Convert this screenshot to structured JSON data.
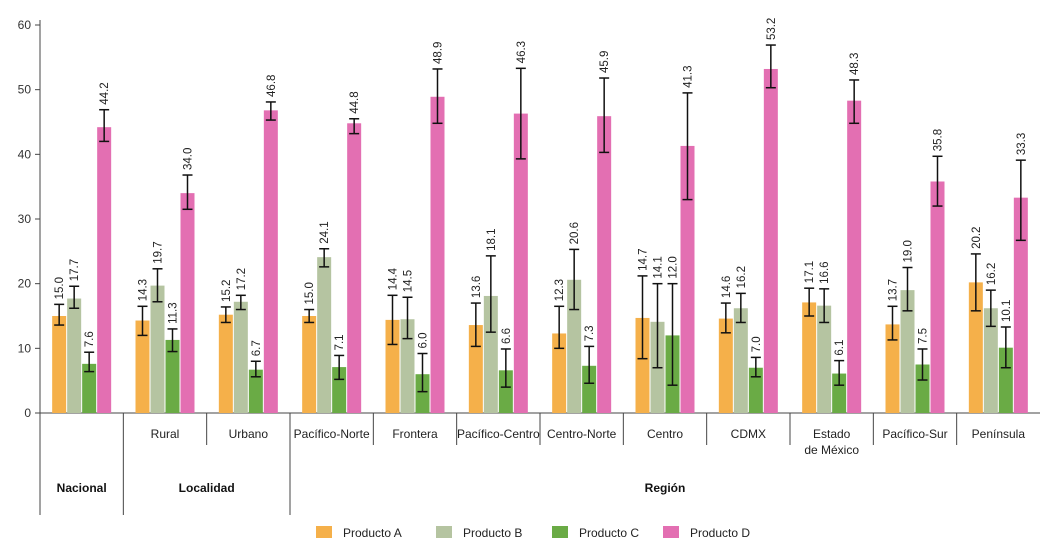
{
  "chart_data": {
    "type": "bar",
    "title": "",
    "xlabel": "",
    "ylabel": "",
    "ylim": [
      0,
      60
    ],
    "yticks": [
      0,
      10,
      20,
      30,
      40,
      50,
      60
    ],
    "grid": false,
    "legend_position": "bottom",
    "categories": [
      "",
      "Rural",
      "Urbano",
      "Pacífico-Norte",
      "Frontera",
      "Pacífico-Centro",
      "Centro-Norte",
      "Centro",
      "CDMX",
      "Estado de México",
      "Pacífico-Sur",
      "Península"
    ],
    "category_label_lines": [
      [],
      [
        "Rural"
      ],
      [
        "Urbano"
      ],
      [
        "Pacífico-Norte"
      ],
      [
        "Frontera"
      ],
      [
        "Pacífico-Centro"
      ],
      [
        "Centro-Norte"
      ],
      [
        "Centro"
      ],
      [
        "CDMX"
      ],
      [
        "Estado",
        "de México"
      ],
      [
        "Pacífico-Sur"
      ],
      [
        "Península"
      ]
    ],
    "groups": [
      {
        "label": "Nacional",
        "categories": [
          0
        ]
      },
      {
        "label": "Localidad",
        "categories": [
          1,
          2
        ]
      },
      {
        "label": "Región",
        "categories": [
          3,
          4,
          5,
          6,
          7,
          8,
          9,
          10,
          11
        ]
      }
    ],
    "series": [
      {
        "name": "Producto A",
        "color": "#f5b04a",
        "values": [
          15.0,
          14.3,
          15.2,
          15.0,
          14.4,
          13.6,
          12.3,
          14.7,
          14.6,
          17.1,
          13.7,
          20.2
        ],
        "error_low": [
          13.6,
          12.0,
          14.0,
          14.0,
          10.6,
          10.3,
          10.0,
          8.4,
          12.4,
          15.0,
          11.3,
          15.8
        ],
        "error_high": [
          16.8,
          16.5,
          16.4,
          16.0,
          18.2,
          17.0,
          16.5,
          21.2,
          17.0,
          19.3,
          16.5,
          24.6
        ]
      },
      {
        "name": "Producto B",
        "color": "#b5c4a1",
        "values": [
          17.7,
          19.7,
          17.2,
          24.1,
          14.5,
          18.1,
          20.6,
          14.1,
          16.2,
          16.6,
          19.0,
          16.2
        ],
        "error_low": [
          16.2,
          17.2,
          16.0,
          22.6,
          11.5,
          12.5,
          16.0,
          7.0,
          14.0,
          14.0,
          15.8,
          13.4
        ],
        "error_high": [
          19.6,
          22.3,
          18.2,
          25.4,
          17.9,
          24.3,
          25.3,
          20.0,
          18.5,
          19.2,
          22.5,
          19.0
        ]
      },
      {
        "name": "Producto C",
        "color": "#6aab45",
        "values": [
          7.6,
          11.3,
          6.7,
          7.1,
          6.0,
          6.6,
          7.3,
          12.0,
          7.0,
          6.1,
          7.5,
          10.1
        ],
        "error_low": [
          6.4,
          9.5,
          5.6,
          5.2,
          3.3,
          4.0,
          4.6,
          4.3,
          5.6,
          4.3,
          5.1,
          7.0
        ],
        "error_high": [
          9.4,
          13.0,
          8.0,
          8.9,
          9.2,
          9.9,
          10.3,
          20.0,
          8.6,
          8.1,
          9.9,
          13.3
        ]
      },
      {
        "name": "Producto D",
        "color": "#e36fb2",
        "values": [
          44.2,
          34.0,
          46.8,
          44.8,
          48.9,
          46.3,
          45.9,
          41.3,
          53.2,
          48.3,
          35.8,
          33.3
        ],
        "error_low": [
          42.0,
          31.5,
          45.3,
          43.2,
          44.8,
          39.3,
          40.3,
          33.0,
          50.3,
          44.8,
          32.0,
          26.7
        ],
        "error_high": [
          46.9,
          36.8,
          48.1,
          45.5,
          53.2,
          53.3,
          51.8,
          49.5,
          56.9,
          51.5,
          39.7,
          39.1
        ]
      }
    ]
  }
}
